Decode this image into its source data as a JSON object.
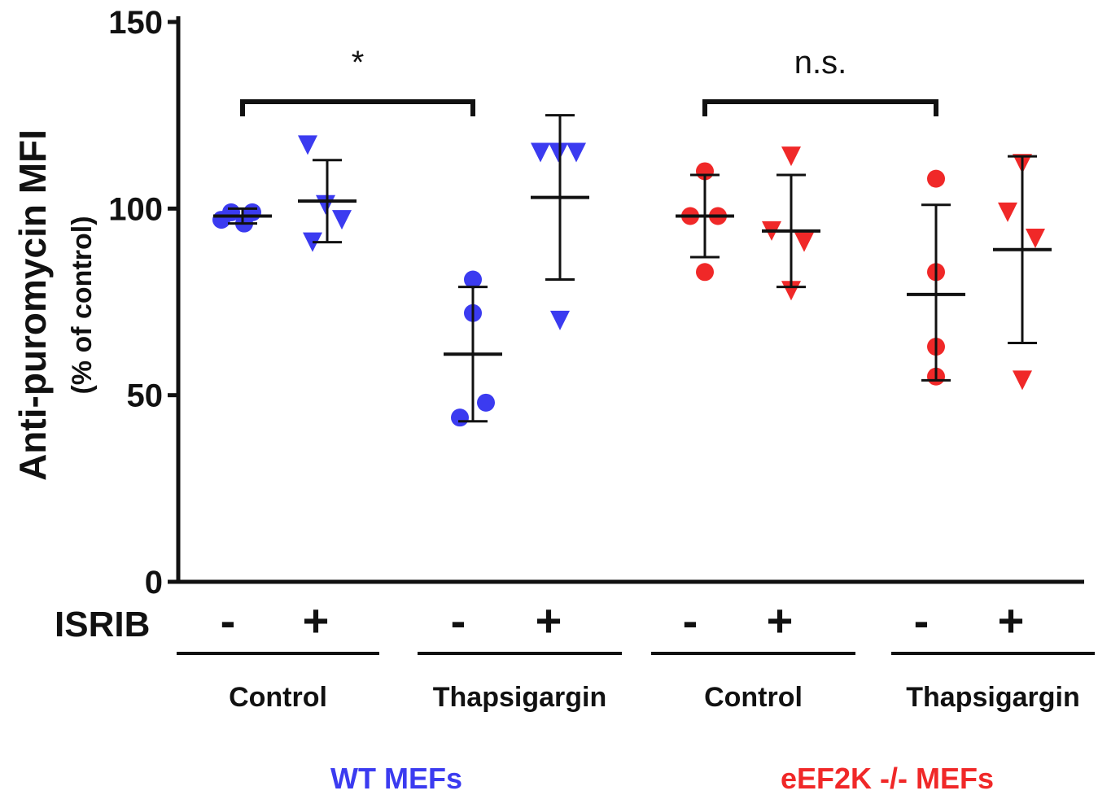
{
  "chart_data": {
    "type": "scatter",
    "ylabel": "Anti-puromycin MFI",
    "ylabel_sub": "(% of control)",
    "ylim": [
      0,
      150
    ],
    "yticks": [
      0,
      50,
      100,
      150
    ],
    "grid": false,
    "isrib_row_label": "ISRIB",
    "colors": {
      "wt": "#3b3bf0",
      "ko": "#f02828",
      "line": "#111111"
    },
    "treatments": [
      {
        "label": "Control",
        "cell": "wt"
      },
      {
        "label": "Thapsigargin",
        "cell": "wt"
      },
      {
        "label": "Control",
        "cell": "ko"
      },
      {
        "label": "Thapsigargin",
        "cell": "ko"
      }
    ],
    "cell_lines": [
      {
        "key": "wt",
        "label": "WT  MEFs"
      },
      {
        "key": "ko",
        "label": "eEF2K -/- MEFs"
      }
    ],
    "groups": [
      {
        "isrib": "-",
        "treatment": 0,
        "cell": "wt",
        "marker": "circle",
        "points": [
          99,
          97,
          99,
          96
        ],
        "mean": 98,
        "sd_low": 96,
        "sd_high": 100
      },
      {
        "isrib": "+",
        "treatment": 0,
        "cell": "wt",
        "marker": "triangle",
        "points": [
          117,
          101,
          97,
          91
        ],
        "mean": 102,
        "sd_low": 91,
        "sd_high": 113
      },
      {
        "isrib": "-",
        "treatment": 1,
        "cell": "wt",
        "marker": "circle",
        "points": [
          81,
          72,
          48,
          44
        ],
        "mean": 61,
        "sd_low": 43,
        "sd_high": 79
      },
      {
        "isrib": "+",
        "treatment": 1,
        "cell": "wt",
        "marker": "triangle",
        "points": [
          115,
          115,
          115,
          70
        ],
        "mean": 103,
        "sd_low": 81,
        "sd_high": 125
      },
      {
        "isrib": "-",
        "treatment": 2,
        "cell": "ko",
        "marker": "circle",
        "points": [
          110,
          98,
          98,
          83
        ],
        "mean": 98,
        "sd_low": 87,
        "sd_high": 109
      },
      {
        "isrib": "+",
        "treatment": 2,
        "cell": "ko",
        "marker": "triangle",
        "points": [
          114,
          94,
          91,
          78
        ],
        "mean": 94,
        "sd_low": 79,
        "sd_high": 109
      },
      {
        "isrib": "-",
        "treatment": 3,
        "cell": "ko",
        "marker": "circle",
        "points": [
          108,
          83,
          63,
          55
        ],
        "mean": 77,
        "sd_low": 54,
        "sd_high": 101
      },
      {
        "isrib": "+",
        "treatment": 3,
        "cell": "ko",
        "marker": "triangle",
        "points": [
          112,
          99,
          92,
          54
        ],
        "mean": 89,
        "sd_low": 64,
        "sd_high": 114
      }
    ],
    "annotations": [
      {
        "text": "*",
        "from_group": 0,
        "to_group": 2
      },
      {
        "text": "n.s.",
        "from_group": 4,
        "to_group": 6
      }
    ]
  }
}
